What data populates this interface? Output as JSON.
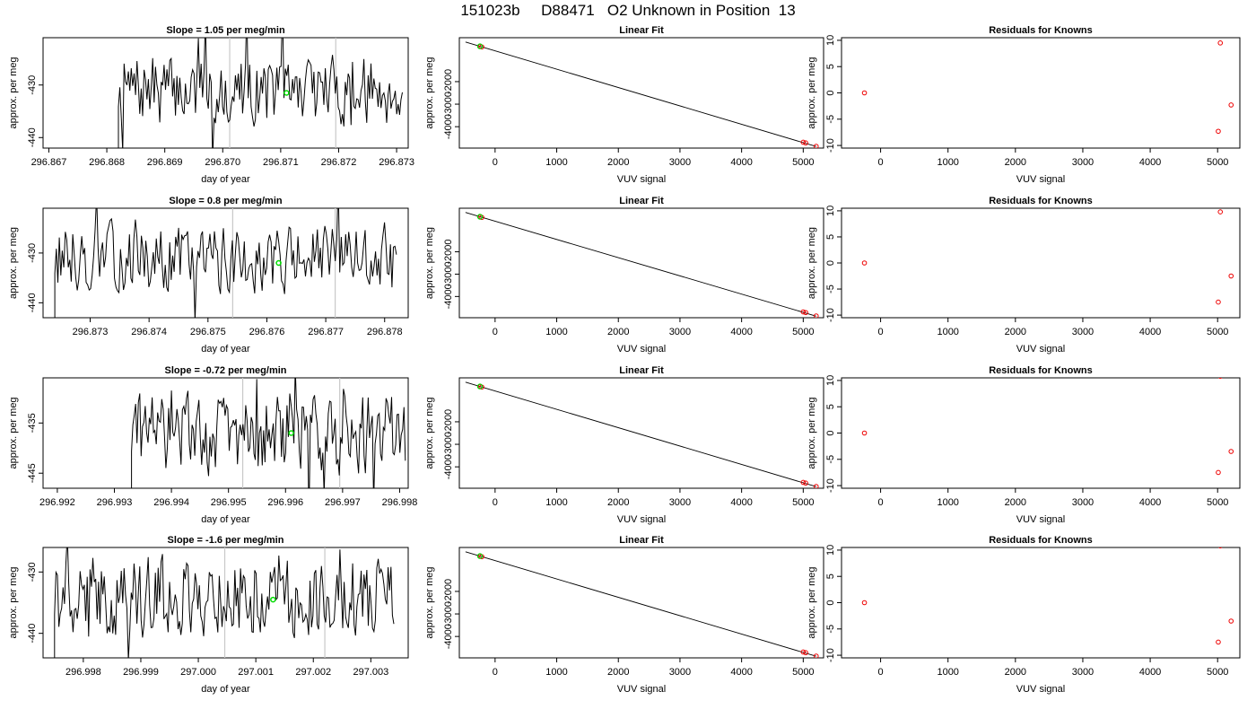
{
  "page": {
    "title": "151023b     D88471   O2 Unknown in Position  13"
  },
  "colors": {
    "line": "#000000",
    "guide": "#c8c8c8",
    "green": "#00dd00",
    "red": "#ee0000"
  },
  "chart_data": [
    {
      "type": "line",
      "title": "Slope =  1.05  per meg/min",
      "xlabel": "day of year",
      "ylabel": "approx. per meg",
      "xlim": [
        296.8669,
        296.8732
      ],
      "ylim": [
        -442.0,
        -421.0
      ],
      "xticks": [
        "296.867",
        "296.868",
        "296.869",
        "296.870",
        "296.871",
        "296.872",
        "296.873"
      ],
      "yticks": [
        "-430",
        "-440"
      ],
      "ytick_values": [
        -430,
        -440
      ],
      "guides": [
        296.87012,
        296.87195
      ],
      "series_start": 296.8682,
      "series_end": 296.8731,
      "series_count": 200,
      "green_point": [
        296.8711,
        -431.5
      ],
      "seed": 7,
      "level": -431,
      "amp": 5
    },
    {
      "type": "scatter",
      "title": "Linear Fit",
      "xlabel": "VUV signal",
      "ylabel": "approx. per meg",
      "xlim": [
        -580,
        5330
      ],
      "ylim": [
        -4950,
        -50
      ],
      "xticks": [
        "0",
        "1000",
        "2000",
        "3000",
        "4000",
        "5000"
      ],
      "xtick_values": [
        0,
        1000,
        2000,
        3000,
        4000,
        5000
      ],
      "yticks": [
        "-2000",
        "-3000",
        "-4000"
      ],
      "ytick_values": [
        -2000,
        -3000,
        -4000
      ],
      "fit_line": [
        [
          -480,
          -240
        ],
        [
          5210,
          -4880
        ]
      ],
      "points": [
        [
          -240,
          -435
        ],
        [
          -215,
          -460
        ],
        [
          5000,
          -4690
        ],
        [
          5040,
          -4720
        ],
        [
          5210,
          -4870
        ]
      ],
      "green_point": [
        -245,
        -432
      ]
    },
    {
      "type": "scatter",
      "title": "Residuals for Knowns",
      "xlabel": "VUV signal",
      "ylabel": "approx. per meg",
      "xlim": [
        -580,
        5330
      ],
      "ylim": [
        -10.5,
        10.5
      ],
      "xticks": [
        "0",
        "1000",
        "2000",
        "3000",
        "4000",
        "5000"
      ],
      "xtick_values": [
        0,
        1000,
        2000,
        3000,
        4000,
        5000
      ],
      "yticks": [
        "10",
        "5",
        "0",
        "-5",
        "-10"
      ],
      "ytick_values": [
        10,
        5,
        0,
        -5,
        -10
      ],
      "points": [
        [
          -240,
          0
        ],
        [
          5040,
          9.5
        ],
        [
          5200,
          -2.3
        ],
        [
          5010,
          -7.3
        ]
      ]
    },
    {
      "type": "line",
      "title": "Slope =  0.8  per meg/min",
      "xlabel": "day of year",
      "ylabel": "approx. per meg",
      "xlim": [
        296.8722,
        296.8784
      ],
      "ylim": [
        -443.0,
        -421.0
      ],
      "xticks": [
        "296.873",
        "296.874",
        "296.875",
        "296.876",
        "296.877",
        "296.878"
      ],
      "yticks": [
        "-430",
        "-440"
      ],
      "ytick_values": [
        -430,
        -440
      ],
      "guides": [
        296.87542,
        296.87716
      ],
      "series_start": 296.8724,
      "series_end": 296.8782,
      "series_count": 230,
      "green_point": [
        296.8762,
        -432.0
      ],
      "seed": 13,
      "level": -431,
      "amp": 5
    },
    {
      "type": "scatter",
      "title": "Linear Fit",
      "xlabel": "VUV signal",
      "ylabel": "approx. per meg",
      "xlim": [
        -580,
        5330
      ],
      "ylim": [
        -4950,
        -50
      ],
      "xticks": [
        "0",
        "1000",
        "2000",
        "3000",
        "4000",
        "5000"
      ],
      "xtick_values": [
        0,
        1000,
        2000,
        3000,
        4000,
        5000
      ],
      "yticks": [
        "-2000",
        "-3000",
        "-4000"
      ],
      "ytick_values": [
        -2000,
        -3000,
        -4000
      ],
      "fit_line": [
        [
          -480,
          -240
        ],
        [
          5210,
          -4880
        ]
      ],
      "points": [
        [
          -240,
          -435
        ],
        [
          -215,
          -460
        ],
        [
          5000,
          -4690
        ],
        [
          5040,
          -4720
        ],
        [
          5210,
          -4870
        ]
      ],
      "green_point": [
        -245,
        -432
      ]
    },
    {
      "type": "scatter",
      "title": "Residuals for Knowns",
      "xlabel": "VUV signal",
      "ylabel": "approx. per meg",
      "xlim": [
        -580,
        5330
      ],
      "ylim": [
        -10.5,
        10.5
      ],
      "xticks": [
        "0",
        "1000",
        "2000",
        "3000",
        "4000",
        "5000"
      ],
      "xtick_values": [
        0,
        1000,
        2000,
        3000,
        4000,
        5000
      ],
      "yticks": [
        "10",
        "5",
        "0",
        "-5",
        "-10"
      ],
      "ytick_values": [
        10,
        5,
        0,
        -5,
        -10
      ],
      "points": [
        [
          -240,
          0
        ],
        [
          5040,
          9.8
        ],
        [
          5200,
          -2.5
        ],
        [
          5010,
          -7.5
        ]
      ]
    },
    {
      "type": "line",
      "title": "Slope =  -0.72  per meg/min",
      "xlabel": "day of year",
      "ylabel": "approx. per meg",
      "xlim": [
        296.99175,
        296.99815
      ],
      "ylim": [
        -448.0,
        -426.0
      ],
      "xticks": [
        "296.992",
        "296.993",
        "296.994",
        "296.995",
        "296.996",
        "296.997",
        "296.998"
      ],
      "yticks": [
        "-435",
        "-445"
      ],
      "ytick_values": [
        -435,
        -445
      ],
      "guides": [
        296.99525,
        296.99695
      ],
      "series_start": 296.9933,
      "series_end": 296.9981,
      "series_count": 200,
      "green_point": [
        296.9961,
        -437.0
      ],
      "seed": 29,
      "level": -437,
      "amp": 6
    },
    {
      "type": "scatter",
      "title": "Linear Fit",
      "xlabel": "VUV signal",
      "ylabel": "approx. per meg",
      "xlim": [
        -580,
        5330
      ],
      "ylim": [
        -4950,
        -50
      ],
      "xticks": [
        "0",
        "1000",
        "2000",
        "3000",
        "4000",
        "5000"
      ],
      "xtick_values": [
        0,
        1000,
        2000,
        3000,
        4000,
        5000
      ],
      "yticks": [
        "-2000",
        "-3000",
        "-4000"
      ],
      "ytick_values": [
        -2000,
        -3000,
        -4000
      ],
      "fit_line": [
        [
          -480,
          -240
        ],
        [
          5210,
          -4880
        ]
      ],
      "points": [
        [
          -240,
          -435
        ],
        [
          -215,
          -460
        ],
        [
          5000,
          -4690
        ],
        [
          5040,
          -4720
        ],
        [
          5210,
          -4870
        ]
      ],
      "green_point": [
        -245,
        -432
      ]
    },
    {
      "type": "scatter",
      "title": "Residuals for Knowns",
      "xlabel": "VUV signal",
      "ylabel": "approx. per meg",
      "xlim": [
        -580,
        5330
      ],
      "ylim": [
        -10.5,
        10.5
      ],
      "xticks": [
        "0",
        "1000",
        "2000",
        "3000",
        "4000",
        "5000"
      ],
      "xtick_values": [
        0,
        1000,
        2000,
        3000,
        4000,
        5000
      ],
      "yticks": [
        "10",
        "5",
        "0",
        "-5",
        "-10"
      ],
      "ytick_values": [
        10,
        5,
        0,
        -5,
        -10
      ],
      "points": [
        [
          -240,
          0
        ],
        [
          5040,
          10.8
        ],
        [
          5200,
          -3.5
        ],
        [
          5010,
          -7.5
        ]
      ]
    },
    {
      "type": "line",
      "title": "Slope =  -1.6  per meg/min",
      "xlabel": "day of year",
      "ylabel": "approx. per meg",
      "xlim": [
        296.9973,
        297.00365
      ],
      "ylim": [
        -444.0,
        -426.0
      ],
      "xticks": [
        "296.998",
        "296.999",
        "297.000",
        "297.001",
        "297.002",
        "297.003"
      ],
      "yticks": [
        "-430",
        "-440"
      ],
      "ytick_values": [
        -430,
        -440
      ],
      "guides": [
        297.00046,
        297.0022
      ],
      "series_start": 296.9975,
      "series_end": 297.0034,
      "series_count": 240,
      "green_point": [
        297.0013,
        -434.5
      ],
      "seed": 41,
      "level": -434,
      "amp": 5
    },
    {
      "type": "scatter",
      "title": "Linear Fit",
      "xlabel": "VUV signal",
      "ylabel": "approx. per meg",
      "xlim": [
        -580,
        5330
      ],
      "ylim": [
        -4950,
        -50
      ],
      "xticks": [
        "0",
        "1000",
        "2000",
        "3000",
        "4000",
        "5000"
      ],
      "xtick_values": [
        0,
        1000,
        2000,
        3000,
        4000,
        5000
      ],
      "yticks": [
        "-2000",
        "-3000",
        "-4000"
      ],
      "ytick_values": [
        -2000,
        -3000,
        -4000
      ],
      "fit_line": [
        [
          -480,
          -240
        ],
        [
          5210,
          -4880
        ]
      ],
      "points": [
        [
          -240,
          -435
        ],
        [
          -215,
          -460
        ],
        [
          5000,
          -4690
        ],
        [
          5040,
          -4720
        ],
        [
          5210,
          -4870
        ]
      ],
      "green_point": [
        -245,
        -432
      ]
    },
    {
      "type": "scatter",
      "title": "Residuals for Knowns",
      "xlabel": "VUV signal",
      "ylabel": "approx. per meg",
      "xlim": [
        -580,
        5330
      ],
      "ylim": [
        -10.5,
        10.5
      ],
      "xticks": [
        "0",
        "1000",
        "2000",
        "3000",
        "4000",
        "5000"
      ],
      "xtick_values": [
        0,
        1000,
        2000,
        3000,
        4000,
        5000
      ],
      "yticks": [
        "10",
        "5",
        "0",
        "-5",
        "-10"
      ],
      "ytick_values": [
        10,
        5,
        0,
        -5,
        -10
      ],
      "points": [
        [
          -240,
          0
        ],
        [
          5040,
          10.8
        ],
        [
          5200,
          -3.5
        ],
        [
          5010,
          -7.5
        ]
      ]
    }
  ]
}
